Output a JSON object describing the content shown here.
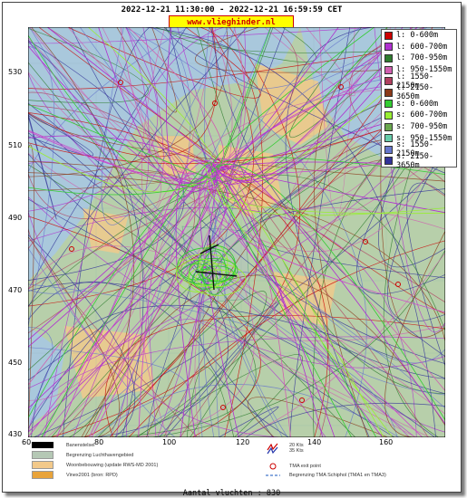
{
  "header": {
    "title": "2022-12-21 11:30:00 - 2022-12-21 16:59:59 CET",
    "site": "www.vlieghinder.nl"
  },
  "axes": {
    "y_ticks": [
      "530",
      "510",
      "490",
      "470",
      "450",
      "430"
    ],
    "x_ticks": [
      "60",
      "80",
      "100",
      "120",
      "140",
      "160"
    ]
  },
  "legend": {
    "items": [
      {
        "label": "l: 0-600m",
        "color": "#cc0000"
      },
      {
        "label": "l: 600-700m",
        "color": "#b030d0"
      },
      {
        "label": "l: 700-950m",
        "color": "#2e7d2e"
      },
      {
        "label": "l: 950-1550m",
        "color": "#d060b0"
      },
      {
        "label": "l: 1550-2150m",
        "color": "#b04060"
      },
      {
        "label": "l: 2150-3650m",
        "color": "#8b3a1a"
      },
      {
        "label": "s: 0-600m",
        "color": "#33cc33"
      },
      {
        "label": "s: 600-700m",
        "color": "#99ee33"
      },
      {
        "label": "s: 700-950m",
        "color": "#6aa84f"
      },
      {
        "label": "s: 950-1550m",
        "color": "#66ccaa"
      },
      {
        "label": "s: 1550-2150m",
        "color": "#6677cc"
      },
      {
        "label": "s: 2150-3650m",
        "color": "#333399"
      }
    ]
  },
  "bottom_legend": {
    "runway": "Banenstelsel",
    "airport_boundary": "Begrenzing Luchthavengebied",
    "residential": "Woonbebouwing (update RWS-MD 2001)",
    "vinex": "Vinex2001 (bron: RPD)",
    "wind": "20 Kts\n35 Kts",
    "tma_exit": "TMA exit point",
    "tma_boundary": "Begrenzing TMA Schiphol  (TMA1 en TMA3)"
  },
  "footer": {
    "flights": "Aantal vluchten : 830"
  },
  "colors": {
    "sea": "#a9c8dc",
    "land": "#b7cfaa",
    "urban": "#f2c98a",
    "airport": "#b5c8b5"
  }
}
